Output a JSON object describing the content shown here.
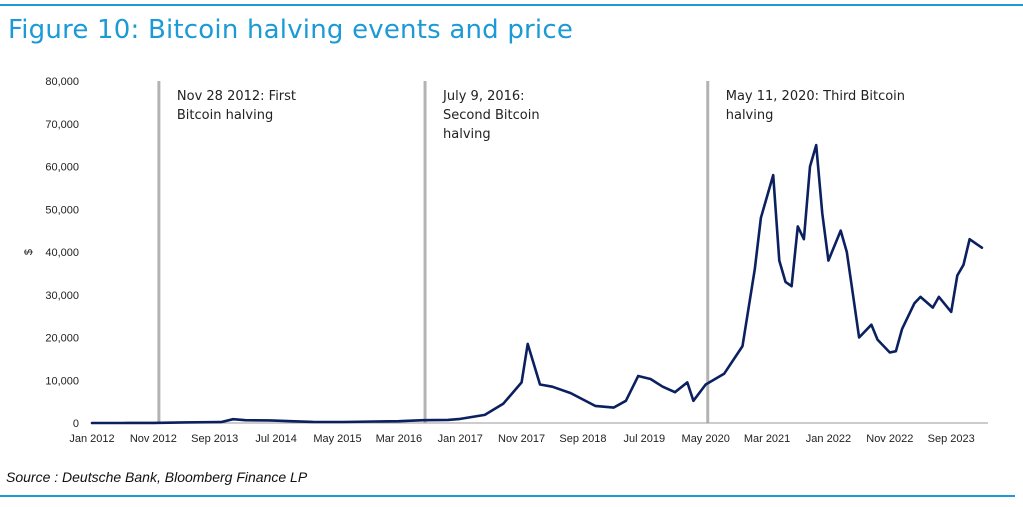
{
  "title": "Figure 10: Bitcoin halving events and price",
  "source": "Source : Deutsche Bank, Bloomberg Finance LP",
  "colors": {
    "accent": "#1b9ad6",
    "series": "#0b2060",
    "halving_line": "#b3b3b3"
  },
  "chart_data": {
    "type": "line",
    "title": "Figure 10: Bitcoin halving events and price",
    "xlabel": "",
    "ylabel": "$",
    "ylim": [
      0,
      80000
    ],
    "yticks": [
      0,
      10000,
      20000,
      30000,
      40000,
      50000,
      60000,
      70000,
      80000
    ],
    "ytick_labels": [
      "0",
      "10,000",
      "20,000",
      "30,000",
      "40,000",
      "50,000",
      "60,000",
      "70,000",
      "80,000"
    ],
    "xlim": [
      "2012-01",
      "2024-03"
    ],
    "xticks": [
      "2012-01",
      "2012-11",
      "2013-09",
      "2014-07",
      "2015-05",
      "2016-03",
      "2017-01",
      "2017-11",
      "2018-09",
      "2019-07",
      "2020-05",
      "2021-03",
      "2022-01",
      "2022-11",
      "2023-09"
    ],
    "xtick_labels": [
      "Jan 2012",
      "Nov 2012",
      "Sep 2013",
      "Jul 2014",
      "May 2015",
      "Mar 2016",
      "Jan 2017",
      "Nov 2017",
      "Sep 2018",
      "Jul 2019",
      "May 2020",
      "Mar 2021",
      "Jan 2022",
      "Nov 2022",
      "Sep 2023"
    ],
    "grid": false,
    "legend": "none",
    "series": [
      {
        "x": [
          "2012-01",
          "2012-06",
          "2012-11",
          "2013-04",
          "2013-10",
          "2013-12",
          "2014-02",
          "2014-06",
          "2014-10",
          "2015-01",
          "2015-06",
          "2015-11",
          "2016-03",
          "2016-07",
          "2016-11",
          "2017-01",
          "2017-05",
          "2017-08",
          "2017-11",
          "2017-12",
          "2018-02",
          "2018-04",
          "2018-07",
          "2018-11",
          "2019-02",
          "2019-04",
          "2019-06",
          "2019-08",
          "2019-10",
          "2019-12",
          "2020-02",
          "2020-03",
          "2020-05",
          "2020-08",
          "2020-11",
          "2021-01",
          "2021-02",
          "2021-04",
          "2021-05",
          "2021-06",
          "2021-07",
          "2021-08",
          "2021-09",
          "2021-10",
          "2021-11",
          "2021-12",
          "2022-01",
          "2022-03",
          "2022-04",
          "2022-05",
          "2022-06",
          "2022-08",
          "2022-09",
          "2022-11",
          "2022-12",
          "2023-01",
          "2023-03",
          "2023-04",
          "2023-06",
          "2023-07",
          "2023-09",
          "2023-10",
          "2023-11",
          "2023-12",
          "2024-01",
          "2024-02"
        ],
        "y": [
          5,
          7,
          12,
          140,
          200,
          900,
          650,
          600,
          400,
          250,
          240,
          350,
          420,
          650,
          720,
          950,
          1900,
          4500,
          9500,
          18500,
          9000,
          8500,
          7000,
          4000,
          3600,
          5200,
          11000,
          10300,
          8500,
          7200,
          9500,
          5200,
          9000,
          11500,
          18000,
          36000,
          48000,
          58000,
          38000,
          33000,
          32000,
          46000,
          43000,
          60000,
          65000,
          49000,
          38000,
          45000,
          40000,
          30000,
          20000,
          23000,
          19500,
          16500,
          16800,
          22000,
          28000,
          29500,
          27000,
          29500,
          26000,
          34500,
          37000,
          43000,
          42000,
          41000
        ]
      }
    ],
    "annotations": [
      {
        "x": "2012-11-28",
        "lines": [
          "Nov 28 2012: First",
          "Bitcoin halving"
        ]
      },
      {
        "x": "2016-07-09",
        "lines": [
          "July 9, 2016:",
          "Second Bitcoin",
          "halving"
        ]
      },
      {
        "x": "2020-05-11",
        "lines": [
          "May 11, 2020: Third Bitcoin",
          "halving"
        ]
      }
    ]
  }
}
